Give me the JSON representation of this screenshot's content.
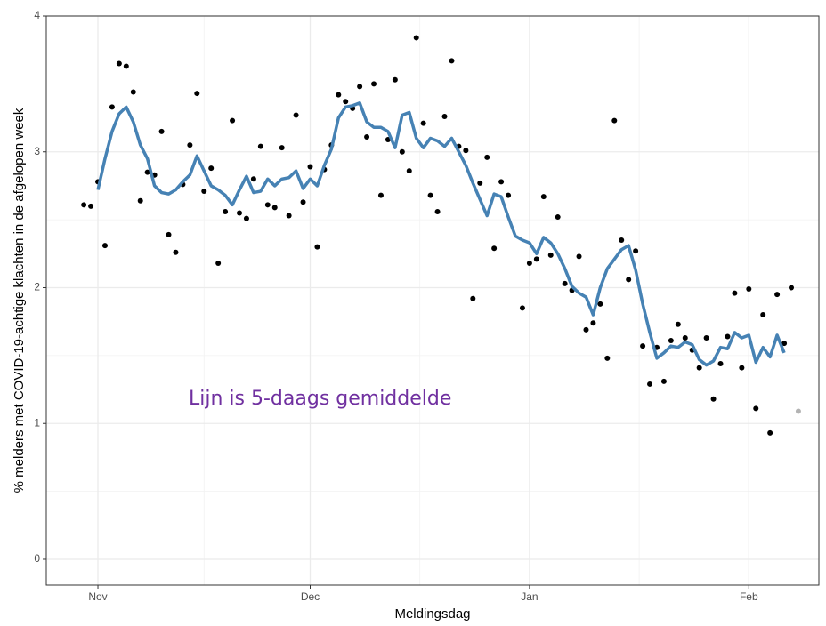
{
  "chart_data": {
    "type": "scatter",
    "xlabel": "Meldingsdag",
    "ylabel": "% melders met COVID-19-achtige klachten in de afgelopen week",
    "annotation": "Lijn is 5-daags gemiddelde",
    "xlim": [
      -7.3,
      101.9
    ],
    "ylim": [
      -0.19,
      4.0
    ],
    "xticks": [
      {
        "value": 0,
        "label": "Nov"
      },
      {
        "value": 30,
        "label": "Dec"
      },
      {
        "value": 61,
        "label": "Jan"
      },
      {
        "value": 92,
        "label": "Feb"
      }
    ],
    "yticks": [
      0,
      1,
      2,
      3,
      4
    ],
    "xminor": [
      15,
      45.5,
      76.5
    ],
    "yminor": [
      0.5,
      1.5,
      2.5,
      3.5
    ],
    "grid": true,
    "series": [
      {
        "mode": "points",
        "color": "#000000",
        "x": [
          -2,
          -1,
          0,
          1,
          2,
          3,
          4,
          5,
          6,
          7,
          8,
          9,
          10,
          11,
          12,
          13,
          14,
          15,
          16,
          17,
          18,
          19,
          20,
          21,
          22,
          23,
          24,
          25,
          26,
          27,
          28,
          29,
          30,
          31,
          32,
          33,
          34,
          35,
          36,
          37,
          38,
          39,
          40,
          41,
          42,
          43,
          44,
          45,
          46,
          47,
          48,
          49,
          50,
          51,
          52,
          53,
          54,
          55,
          56,
          57,
          58,
          60,
          61,
          62,
          63,
          64,
          65,
          66,
          67,
          68,
          69,
          70,
          71,
          72,
          73,
          74,
          75,
          76,
          77,
          78,
          79,
          80,
          81,
          82,
          83,
          84,
          85,
          86,
          87,
          88,
          89,
          90,
          91,
          92,
          93,
          94,
          95,
          96,
          97,
          98
        ],
        "values": [
          2.61,
          2.6,
          2.78,
          2.31,
          3.33,
          3.65,
          3.63,
          3.44,
          2.64,
          2.85,
          2.83,
          3.15,
          2.39,
          2.26,
          2.76,
          3.05,
          3.43,
          2.71,
          2.88,
          2.18,
          2.56,
          3.23,
          2.55,
          2.51,
          2.8,
          3.04,
          2.61,
          2.59,
          3.03,
          2.53,
          3.27,
          2.63,
          2.89,
          2.3,
          2.87,
          3.05,
          3.42,
          3.37,
          3.32,
          3.48,
          3.11,
          3.5,
          2.68,
          3.09,
          3.53,
          3.0,
          2.86,
          3.84,
          3.21,
          2.68,
          2.56,
          3.26,
          3.67,
          3.04,
          3.01,
          1.92,
          2.77,
          2.96,
          2.29,
          2.78,
          2.68,
          1.85,
          2.18,
          2.21,
          2.67,
          2.24,
          2.52,
          2.03,
          1.98,
          2.23,
          1.69,
          1.74,
          1.88,
          1.48,
          3.23,
          2.35,
          2.06,
          2.27,
          1.57,
          1.29,
          1.56,
          1.31,
          1.61,
          1.73,
          1.63,
          1.54,
          1.41,
          1.63,
          1.18,
          1.44,
          1.64,
          1.96,
          1.41,
          1.99,
          1.11,
          1.8,
          0.93,
          1.95,
          1.59,
          2.0
        ]
      },
      {
        "mode": "points",
        "color": "#b3b3b3",
        "x": [
          99
        ],
        "values": [
          1.09
        ]
      },
      {
        "mode": "line",
        "color": "#4682b4",
        "x": [
          0,
          1,
          2,
          3,
          4,
          5,
          6,
          7,
          8,
          9,
          10,
          11,
          12,
          13,
          14,
          15,
          16,
          17,
          18,
          19,
          20,
          21,
          22,
          23,
          24,
          25,
          26,
          27,
          28,
          29,
          30,
          31,
          32,
          33,
          34,
          35,
          36,
          37,
          38,
          39,
          40,
          41,
          42,
          43,
          44,
          45,
          46,
          47,
          48,
          49,
          50,
          51,
          52,
          53,
          54,
          55,
          56,
          57,
          58,
          59,
          60,
          61,
          62,
          63,
          64,
          65,
          66,
          67,
          68,
          69,
          70,
          71,
          72,
          73,
          74,
          75,
          76,
          77,
          78,
          79,
          80,
          81,
          82,
          83,
          84,
          85,
          86,
          87,
          88,
          89,
          90,
          91,
          92,
          93,
          94,
          95,
          96,
          97
        ],
        "values": [
          2.72,
          2.95,
          3.15,
          3.28,
          3.33,
          3.22,
          3.05,
          2.95,
          2.75,
          2.7,
          2.69,
          2.72,
          2.78,
          2.83,
          2.97,
          2.86,
          2.75,
          2.72,
          2.68,
          2.61,
          2.72,
          2.82,
          2.7,
          2.71,
          2.8,
          2.75,
          2.8,
          2.81,
          2.86,
          2.73,
          2.8,
          2.75,
          2.9,
          3.02,
          3.25,
          3.33,
          3.34,
          3.36,
          3.22,
          3.18,
          3.18,
          3.15,
          3.03,
          3.27,
          3.29,
          3.1,
          3.03,
          3.1,
          3.08,
          3.04,
          3.1,
          3.0,
          2.9,
          2.77,
          2.65,
          2.53,
          2.69,
          2.67,
          2.52,
          2.38,
          2.35,
          2.33,
          2.25,
          2.37,
          2.33,
          2.25,
          2.14,
          2.01,
          1.96,
          1.93,
          1.8,
          2.0,
          2.14,
          2.21,
          2.28,
          2.31,
          2.13,
          1.88,
          1.67,
          1.48,
          1.52,
          1.57,
          1.56,
          1.6,
          1.58,
          1.47,
          1.43,
          1.46,
          1.56,
          1.55,
          1.67,
          1.63,
          1.65,
          1.45,
          1.56,
          1.49,
          1.65,
          1.52
        ]
      }
    ]
  }
}
